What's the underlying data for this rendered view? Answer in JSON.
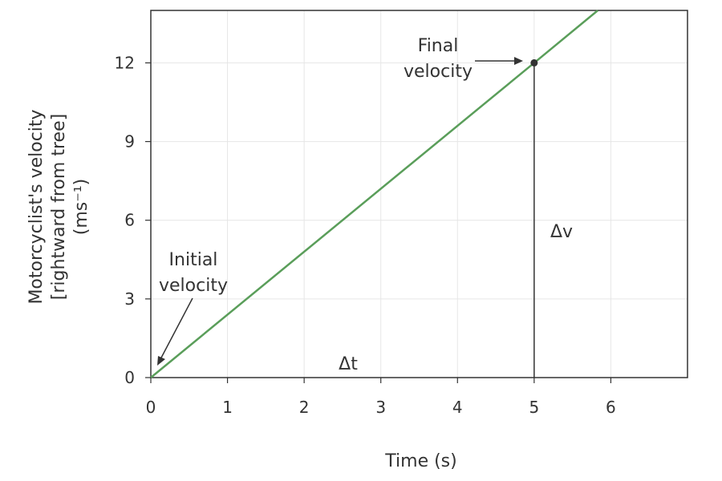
{
  "chart_data": {
    "type": "line",
    "title": "",
    "xlabel": "Time (s)",
    "ylabel_lines": [
      "Motorcyclist's velocity",
      "[rightward from tree]",
      "(ms⁻¹)"
    ],
    "x_ticks": [
      0,
      1,
      2,
      3,
      4,
      5,
      6
    ],
    "y_ticks": [
      0,
      3,
      6,
      9,
      12
    ],
    "xlim": [
      0,
      7
    ],
    "ylim": [
      0,
      14
    ],
    "grid": true,
    "series": [
      {
        "color": "#5a9e5a",
        "points": [
          [
            0,
            0
          ],
          [
            5,
            12
          ],
          [
            5.83,
            14
          ]
        ]
      }
    ],
    "highlight_point": {
      "x": 5,
      "y": 12
    },
    "annotations": {
      "final_velocity": [
        "Final",
        "velocity"
      ],
      "initial_velocity": [
        "Initial",
        "velocity"
      ],
      "delta_v": "Δv",
      "delta_t": "Δt"
    }
  }
}
